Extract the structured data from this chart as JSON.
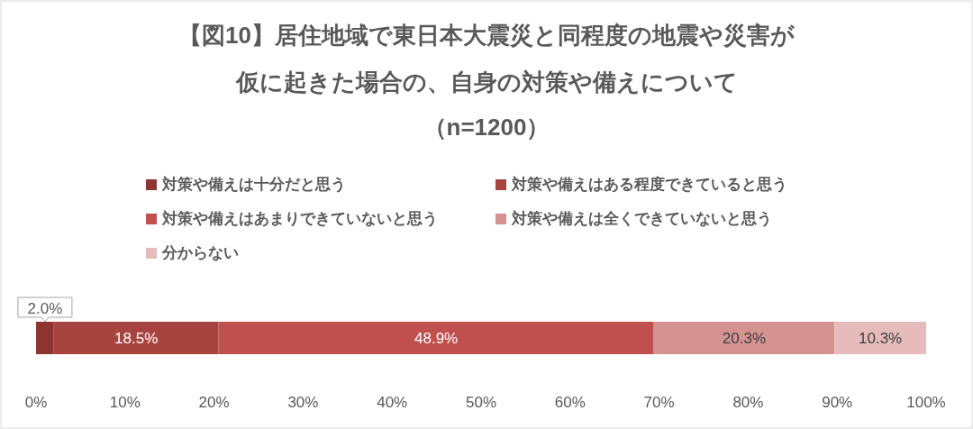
{
  "chart_data": {
    "type": "bar",
    "orientation": "horizontal",
    "stacked": true,
    "title": "【図10】居住地域で東日本大震災と同程度の地震や災害が仮に起きた場合の、自身の対策や備えについて",
    "subtitle": "（n=1200）",
    "categories": [
      null
    ],
    "series": [
      {
        "name": "対策や備えは十分だと思う",
        "color": "#8e3532",
        "values": [
          2.0
        ],
        "value_labels": [
          "2.0%"
        ]
      },
      {
        "name": "対策や備えはある程度できていると思う",
        "color": "#a84440",
        "values": [
          18.5
        ],
        "value_labels": [
          "18.5%"
        ]
      },
      {
        "name": "対策や備えはあまりできていないと思う",
        "color": "#c0504d",
        "values": [
          48.9
        ],
        "value_labels": [
          "48.9%"
        ]
      },
      {
        "name": "対策や備えは全くできていないと思う",
        "color": "#d49391",
        "values": [
          20.3
        ],
        "value_labels": [
          "20.3%"
        ]
      },
      {
        "name": "分からない",
        "color": "#e5bcbb",
        "values": [
          10.3
        ],
        "value_labels": [
          "10.3%"
        ]
      }
    ],
    "xlim": [
      0,
      100
    ],
    "xticks": [
      {
        "value": 0,
        "label": "0%"
      },
      {
        "value": 10,
        "label": "10%"
      },
      {
        "value": 20,
        "label": "20%"
      },
      {
        "value": 30,
        "label": "30%"
      },
      {
        "value": 40,
        "label": "40%"
      },
      {
        "value": 50,
        "label": "50%"
      },
      {
        "value": 60,
        "label": "60%"
      },
      {
        "value": 70,
        "label": "70%"
      },
      {
        "value": 80,
        "label": "80%"
      },
      {
        "value": 90,
        "label": "90%"
      },
      {
        "value": 100,
        "label": "100%"
      }
    ],
    "tick_labels": "x",
    "legend": "top"
  }
}
